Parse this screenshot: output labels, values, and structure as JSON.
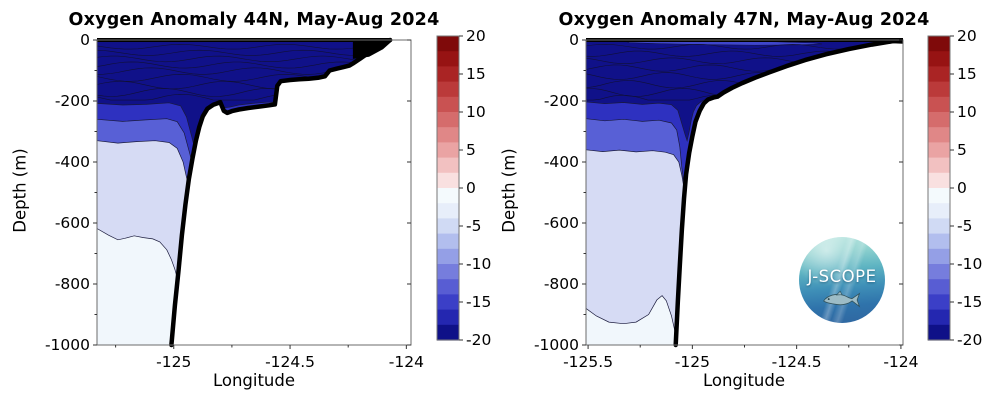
{
  "page": {
    "background": "#ffffff"
  },
  "logo": {
    "text": "J-SCOPE"
  },
  "chart_data": [
    {
      "type": "filled-contour",
      "title": "Oxygen Anomaly 44N, May-Aug 2024",
      "xlabel": "Longitude",
      "ylabel": "Depth (m)",
      "xlim": [
        -125.33,
        -123.98
      ],
      "ylim": [
        -1000,
        0
      ],
      "xticks": [
        -125,
        -124.5,
        -124
      ],
      "xtick_labels": [
        "-125",
        "-124.5",
        "-124"
      ],
      "xminor": [
        -125.25,
        -124.75,
        -124.25
      ],
      "yticks": [
        0,
        -200,
        -400,
        -600,
        -800,
        -1000
      ],
      "ytick_labels": [
        "0",
        "-200",
        "-400",
        "-600",
        "-800",
        "-1000"
      ],
      "yminor": [
        -100,
        -300,
        -500,
        -700,
        -900
      ],
      "grid": false,
      "surface_line_end": -124.065,
      "coast_wedge": [
        [
          -124.23,
          -3
        ],
        [
          -124.06,
          -3
        ],
        [
          -124.1,
          -30
        ],
        [
          -124.16,
          -55
        ],
        [
          -124.23,
          -62
        ]
      ],
      "bathymetry": [
        [
          -125.01,
          -1000
        ],
        [
          -124.995,
          -870
        ],
        [
          -124.98,
          -760
        ],
        [
          -124.965,
          -640
        ],
        [
          -124.95,
          -540
        ],
        [
          -124.935,
          -455
        ],
        [
          -124.92,
          -390
        ],
        [
          -124.905,
          -330
        ],
        [
          -124.89,
          -285
        ],
        [
          -124.875,
          -250
        ],
        [
          -124.855,
          -225
        ],
        [
          -124.83,
          -212
        ],
        [
          -124.8,
          -204
        ],
        [
          -124.785,
          -232
        ],
        [
          -124.77,
          -239
        ],
        [
          -124.75,
          -233
        ],
        [
          -124.72,
          -228
        ],
        [
          -124.68,
          -223
        ],
        [
          -124.63,
          -218
        ],
        [
          -124.59,
          -214
        ],
        [
          -124.565,
          -211
        ],
        [
          -124.555,
          -150
        ],
        [
          -124.54,
          -135
        ],
        [
          -124.5,
          -131
        ],
        [
          -124.46,
          -129
        ],
        [
          -124.42,
          -127
        ],
        [
          -124.38,
          -124
        ],
        [
          -124.35,
          -119
        ],
        [
          -124.33,
          -100
        ],
        [
          -124.3,
          -94
        ],
        [
          -124.27,
          -89
        ],
        [
          -124.245,
          -84
        ],
        [
          -124.23,
          -77
        ],
        [
          -124.2,
          -62
        ],
        [
          -124.17,
          -46
        ],
        [
          -124.14,
          -31
        ],
        [
          -124.11,
          -17
        ],
        [
          -124.08,
          -4
        ],
        [
          -124.07,
          0
        ]
      ],
      "bands": [
        {
          "value_range": [
            -20,
            -14
          ],
          "color": "#101189",
          "top": "surface"
        },
        {
          "value_range": [
            -14,
            -10
          ],
          "color": "#2e31c0",
          "top": [
            [
              -125.33,
              -208
            ],
            [
              -125.22,
              -213
            ],
            [
              -125.12,
              -211
            ],
            [
              -125.02,
              -206
            ],
            [
              -124.97,
              -216
            ],
            [
              -124.945,
              -252
            ],
            [
              -124.925,
              -310
            ],
            [
              -124.91,
              -355
            ],
            [
              -124.9,
              -310
            ],
            [
              -124.885,
              -262
            ],
            [
              -124.87,
              -240
            ],
            [
              -124.85,
              -222
            ],
            [
              -124.82,
              -206
            ],
            [
              -124.8,
              -210
            ],
            [
              -124.785,
              -222
            ],
            [
              -124.76,
              -220
            ],
            [
              -124.72,
              -213
            ],
            [
              -124.66,
              -208
            ],
            [
              -124.6,
              -204
            ],
            [
              -124.57,
              -204
            ]
          ]
        },
        {
          "value_range": [
            -10,
            -8
          ],
          "color": "#5860d6",
          "top": [
            [
              -125.33,
              -260
            ],
            [
              -125.22,
              -267
            ],
            [
              -125.12,
              -262
            ],
            [
              -125.03,
              -258
            ],
            [
              -124.985,
              -268
            ],
            [
              -124.955,
              -305
            ],
            [
              -124.93,
              -375
            ],
            [
              -124.915,
              -428
            ],
            [
              -124.905,
              -442
            ],
            [
              -124.895,
              -400
            ],
            [
              -124.885,
              -340
            ],
            [
              -124.875,
              -295
            ],
            [
              -124.865,
              -272
            ],
            [
              -124.85,
              -258
            ],
            [
              -124.83,
              -252
            ],
            [
              -124.81,
              -240
            ],
            [
              -124.79,
              -234
            ],
            [
              -124.77,
              -246
            ]
          ]
        },
        {
          "value_range": [
            -4,
            -2
          ],
          "color": "#d6dbf4",
          "top": [
            [
              -125.33,
              -330
            ],
            [
              -125.24,
              -338
            ],
            [
              -125.16,
              -333
            ],
            [
              -125.08,
              -330
            ],
            [
              -125.02,
              -336
            ],
            [
              -124.985,
              -355
            ],
            [
              -124.96,
              -400
            ],
            [
              -124.945,
              -450
            ],
            [
              -124.935,
              -478
            ],
            [
              -124.925,
              -470
            ],
            [
              -124.915,
              -445
            ]
          ]
        },
        {
          "value_range": [
            -2,
            0
          ],
          "color": "#f1f7fc",
          "top": [
            [
              -125.33,
              -618
            ],
            [
              -125.28,
              -640
            ],
            [
              -125.24,
              -655
            ],
            [
              -125.21,
              -650
            ],
            [
              -125.17,
              -642
            ],
            [
              -125.13,
              -648
            ],
            [
              -125.09,
              -652
            ],
            [
              -125.06,
              -662
            ],
            [
              -125.03,
              -688
            ],
            [
              -125.01,
              -720
            ],
            [
              -124.995,
              -752
            ],
            [
              -124.985,
              -780
            ]
          ]
        }
      ],
      "inner_contours": {
        "depths": [
          -22,
          -42,
          -62,
          -82,
          -102,
          -124,
          -148,
          -172,
          -192
        ],
        "amp": 16,
        "freq": 14
      },
      "colorbar": {
        "min": -20,
        "max": 20,
        "ticks": [
          20,
          15,
          10,
          5,
          0,
          -5,
          -10,
          -15,
          -20
        ],
        "labels": [
          "20",
          "15",
          "10",
          "5",
          "0",
          "-5",
          "-10",
          "-15",
          "-20"
        ],
        "colors": [
          "#7f0a0a",
          "#971313",
          "#aa2424",
          "#bb3a3a",
          "#c95252",
          "#d56c6c",
          "#e08787",
          "#eaa3a3",
          "#f2c1c1",
          "#f9e0e0",
          "#f4fafd",
          "#e7eefa",
          "#d0daf4",
          "#b2beee",
          "#949fe6",
          "#767ddd",
          "#585dd3",
          "#3b3fc7",
          "#2427b0",
          "#0f1188"
        ]
      }
    },
    {
      "type": "filled-contour",
      "title": "Oxygen Anomaly 47N, May-Aug 2024",
      "xlabel": "Longitude",
      "ylabel": "Depth (m)",
      "xlim": [
        -125.51,
        -123.99
      ],
      "ylim": [
        -1000,
        0
      ],
      "xticks": [
        -125.5,
        -125,
        -124.5,
        -124
      ],
      "xtick_labels": [
        "-125.5",
        "-125",
        "-124.5",
        "-124"
      ],
      "xminor": [
        -125.25,
        -124.75,
        -124.25
      ],
      "yticks": [
        0,
        -200,
        -400,
        -600,
        -800,
        -1000
      ],
      "ytick_labels": [
        "0",
        "-200",
        "-400",
        "-600",
        "-800",
        "-1000"
      ],
      "yminor": [
        -100,
        -300,
        -500,
        -700,
        -900
      ],
      "grid": false,
      "surface_line_end": -123.99,
      "coast_wedge": [
        [
          -124.16,
          -2
        ],
        [
          -123.99,
          -2
        ],
        [
          -123.99,
          -12
        ],
        [
          -124.1,
          -9
        ]
      ],
      "bathymetry": [
        [
          -125.08,
          -1000
        ],
        [
          -125.07,
          -860
        ],
        [
          -125.06,
          -740
        ],
        [
          -125.05,
          -620
        ],
        [
          -125.04,
          -520
        ],
        [
          -125.03,
          -440
        ],
        [
          -125.015,
          -370
        ],
        [
          -125.0,
          -315
        ],
        [
          -124.985,
          -268
        ],
        [
          -124.965,
          -232
        ],
        [
          -124.945,
          -208
        ],
        [
          -124.925,
          -195
        ],
        [
          -124.9,
          -189
        ],
        [
          -124.88,
          -186
        ],
        [
          -124.85,
          -172
        ],
        [
          -124.81,
          -157
        ],
        [
          -124.76,
          -141
        ],
        [
          -124.7,
          -124
        ],
        [
          -124.63,
          -106
        ],
        [
          -124.55,
          -86
        ],
        [
          -124.46,
          -66
        ],
        [
          -124.36,
          -47
        ],
        [
          -124.25,
          -30
        ],
        [
          -124.14,
          -15
        ],
        [
          -124.04,
          -4
        ],
        [
          -124.0,
          -1
        ]
      ],
      "surface_lens": {
        "color": "#3f46cc",
        "points": [
          [
            -125.32,
            -5
          ],
          [
            -125.1,
            -3
          ],
          [
            -124.85,
            -4
          ],
          [
            -124.6,
            -6
          ],
          [
            -124.42,
            -10
          ],
          [
            -124.38,
            -13
          ],
          [
            -124.5,
            -16
          ],
          [
            -124.7,
            -17
          ],
          [
            -124.95,
            -15
          ],
          [
            -125.15,
            -12
          ],
          [
            -125.3,
            -9
          ]
        ]
      },
      "bands": [
        {
          "value_range": [
            -20,
            -14
          ],
          "color": "#101189",
          "top": "surface"
        },
        {
          "value_range": [
            -14,
            -10
          ],
          "color": "#2e31c0",
          "top": [
            [
              -125.51,
              -203
            ],
            [
              -125.42,
              -209
            ],
            [
              -125.33,
              -205
            ],
            [
              -125.24,
              -211
            ],
            [
              -125.16,
              -207
            ],
            [
              -125.1,
              -212
            ],
            [
              -125.07,
              -230
            ],
            [
              -125.05,
              -275
            ],
            [
              -125.035,
              -310
            ],
            [
              -125.025,
              -330
            ],
            [
              -125.015,
              -300
            ],
            [
              -125.005,
              -262
            ],
            [
              -124.995,
              -235
            ],
            [
              -124.98,
              -215
            ],
            [
              -124.96,
              -203
            ],
            [
              -124.945,
              -196
            ]
          ]
        },
        {
          "value_range": [
            -10,
            -8
          ],
          "color": "#5860d6",
          "top": [
            [
              -125.51,
              -258
            ],
            [
              -125.42,
              -265
            ],
            [
              -125.33,
              -260
            ],
            [
              -125.24,
              -267
            ],
            [
              -125.16,
              -263
            ],
            [
              -125.1,
              -272
            ],
            [
              -125.075,
              -295
            ],
            [
              -125.06,
              -350
            ],
            [
              -125.05,
              -420
            ],
            [
              -125.042,
              -462
            ],
            [
              -125.035,
              -470
            ],
            [
              -125.028,
              -440
            ],
            [
              -125.02,
              -400
            ]
          ]
        },
        {
          "value_range": [
            -4,
            -2
          ],
          "color": "#d6dbf4",
          "top": [
            [
              -125.51,
              -360
            ],
            [
              -125.43,
              -366
            ],
            [
              -125.35,
              -361
            ],
            [
              -125.27,
              -367
            ],
            [
              -125.19,
              -363
            ],
            [
              -125.13,
              -368
            ],
            [
              -125.09,
              -376
            ],
            [
              -125.065,
              -400
            ],
            [
              -125.05,
              -445
            ],
            [
              -125.042,
              -478
            ]
          ]
        },
        {
          "value_range": [
            -2,
            0
          ],
          "color": "#f1f7fc",
          "top": [
            [
              -125.51,
              -880
            ],
            [
              -125.46,
              -905
            ],
            [
              -125.4,
              -925
            ],
            [
              -125.33,
              -930
            ],
            [
              -125.27,
              -925
            ],
            [
              -125.21,
              -900
            ],
            [
              -125.17,
              -852
            ],
            [
              -125.145,
              -838
            ],
            [
              -125.125,
              -855
            ],
            [
              -125.1,
              -905
            ],
            [
              -125.085,
              -950
            ],
            [
              -125.075,
              -985
            ]
          ]
        }
      ],
      "inner_contours": {
        "depths": [
          -22,
          -45,
          -68,
          -92,
          -118,
          -145,
          -172,
          -195
        ],
        "amp": 16,
        "freq": 14
      },
      "colorbar": {
        "min": -20,
        "max": 20,
        "ticks": [
          20,
          15,
          10,
          5,
          0,
          -5,
          -10,
          -15,
          -20
        ],
        "labels": [
          "20",
          "15",
          "10",
          "5",
          "0",
          "-5",
          "-10",
          "-15",
          "-20"
        ],
        "colors": [
          "#7f0a0a",
          "#971313",
          "#aa2424",
          "#bb3a3a",
          "#c95252",
          "#d56c6c",
          "#e08787",
          "#eaa3a3",
          "#f2c1c1",
          "#f9e0e0",
          "#f4fafd",
          "#e7eefa",
          "#d0daf4",
          "#b2beee",
          "#949fe6",
          "#767ddd",
          "#585dd3",
          "#3b3fc7",
          "#2427b0",
          "#0f1188"
        ]
      }
    }
  ]
}
